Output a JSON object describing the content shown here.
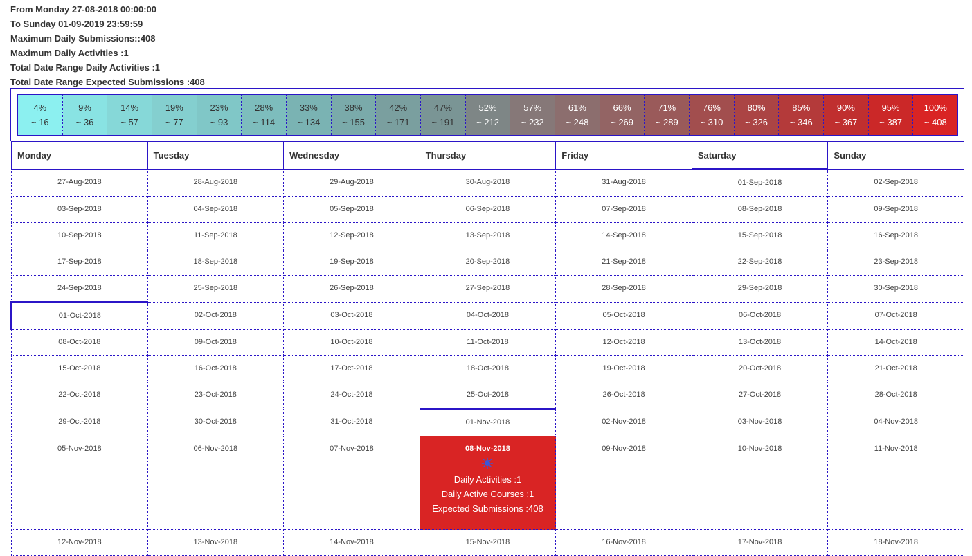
{
  "summary": {
    "from": "From Monday 27-08-2018 00:00:00",
    "to": "To Sunday 01-09-2019 23:59:59",
    "max_submissions": "Maximum Daily Submissions::408",
    "max_activities": "Maximum Daily Activities :1",
    "total_activities": "Total Date Range Daily Activities :1",
    "total_expected": "Total Date Range Expected Submissions :408"
  },
  "legend": [
    {
      "pct": "4%",
      "val": "~ 16",
      "color": "#8cf0f0",
      "text": "#333"
    },
    {
      "pct": "9%",
      "val": "~ 36",
      "color": "#89e3e3",
      "text": "#333"
    },
    {
      "pct": "14%",
      "val": "~ 57",
      "color": "#86d8d8",
      "text": "#333"
    },
    {
      "pct": "19%",
      "val": "~ 77",
      "color": "#84cfcf",
      "text": "#333"
    },
    {
      "pct": "23%",
      "val": "~ 93",
      "color": "#80c7c7",
      "text": "#333"
    },
    {
      "pct": "28%",
      "val": "~ 114",
      "color": "#7dbdbd",
      "text": "#333"
    },
    {
      "pct": "33%",
      "val": "~ 134",
      "color": "#7ab3b3",
      "text": "#333"
    },
    {
      "pct": "38%",
      "val": "~ 155",
      "color": "#7aaaaa",
      "text": "#333"
    },
    {
      "pct": "42%",
      "val": "~ 171",
      "color": "#7a9f9f",
      "text": "#333"
    },
    {
      "pct": "47%",
      "val": "~ 191",
      "color": "#7a9595",
      "text": "#333"
    },
    {
      "pct": "52%",
      "val": "~ 212",
      "color": "#7e8686",
      "text": "#fff"
    },
    {
      "pct": "57%",
      "val": "~ 232",
      "color": "#867878",
      "text": "#fff"
    },
    {
      "pct": "61%",
      "val": "~ 248",
      "color": "#8c6e6e",
      "text": "#fff"
    },
    {
      "pct": "66%",
      "val": "~ 269",
      "color": "#936464",
      "text": "#fff"
    },
    {
      "pct": "71%",
      "val": "~ 289",
      "color": "#9a5a5a",
      "text": "#fff"
    },
    {
      "pct": "76%",
      "val": "~ 310",
      "color": "#a24e4e",
      "text": "#fff"
    },
    {
      "pct": "80%",
      "val": "~ 326",
      "color": "#ab4444",
      "text": "#fff"
    },
    {
      "pct": "85%",
      "val": "~ 346",
      "color": "#b43a3a",
      "text": "#fff"
    },
    {
      "pct": "90%",
      "val": "~ 367",
      "color": "#c02f2f",
      "text": "#fff"
    },
    {
      "pct": "95%",
      "val": "~ 387",
      "color": "#cb2828",
      "text": "#fff"
    },
    {
      "pct": "100%",
      "val": "~ 408",
      "color": "#d92424",
      "text": "#fff"
    }
  ],
  "days": [
    "Monday",
    "Tuesday",
    "Wednesday",
    "Thursday",
    "Friday",
    "Saturday",
    "Sunday"
  ],
  "weeks": [
    [
      "27-Aug-2018",
      "28-Aug-2018",
      "29-Aug-2018",
      "30-Aug-2018",
      "31-Aug-2018",
      "01-Sep-2018",
      "02-Sep-2018"
    ],
    [
      "03-Sep-2018",
      "04-Sep-2018",
      "05-Sep-2018",
      "06-Sep-2018",
      "07-Sep-2018",
      "08-Sep-2018",
      "09-Sep-2018"
    ],
    [
      "10-Sep-2018",
      "11-Sep-2018",
      "12-Sep-2018",
      "13-Sep-2018",
      "14-Sep-2018",
      "15-Sep-2018",
      "16-Sep-2018"
    ],
    [
      "17-Sep-2018",
      "18-Sep-2018",
      "19-Sep-2018",
      "20-Sep-2018",
      "21-Sep-2018",
      "22-Sep-2018",
      "23-Sep-2018"
    ],
    [
      "24-Sep-2018",
      "25-Sep-2018",
      "26-Sep-2018",
      "27-Sep-2018",
      "28-Sep-2018",
      "29-Sep-2018",
      "30-Sep-2018"
    ],
    [
      "01-Oct-2018",
      "02-Oct-2018",
      "03-Oct-2018",
      "04-Oct-2018",
      "05-Oct-2018",
      "06-Oct-2018",
      "07-Oct-2018"
    ],
    [
      "08-Oct-2018",
      "09-Oct-2018",
      "10-Oct-2018",
      "11-Oct-2018",
      "12-Oct-2018",
      "13-Oct-2018",
      "14-Oct-2018"
    ],
    [
      "15-Oct-2018",
      "16-Oct-2018",
      "17-Oct-2018",
      "18-Oct-2018",
      "19-Oct-2018",
      "20-Oct-2018",
      "21-Oct-2018"
    ],
    [
      "22-Oct-2018",
      "23-Oct-2018",
      "24-Oct-2018",
      "25-Oct-2018",
      "26-Oct-2018",
      "27-Oct-2018",
      "28-Oct-2018"
    ],
    [
      "29-Oct-2018",
      "30-Oct-2018",
      "31-Oct-2018",
      "01-Nov-2018",
      "02-Nov-2018",
      "03-Nov-2018",
      "04-Nov-2018"
    ],
    [
      "05-Nov-2018",
      "06-Nov-2018",
      "07-Nov-2018",
      "08-Nov-2018",
      "09-Nov-2018",
      "10-Nov-2018",
      "11-Nov-2018"
    ],
    [
      "12-Nov-2018",
      "13-Nov-2018",
      "14-Nov-2018",
      "15-Nov-2018",
      "16-Nov-2018",
      "17-Nov-2018",
      "18-Nov-2018"
    ]
  ],
  "hot_day": {
    "date": "08-Nov-2018",
    "daily_activities": "Daily Activities :1",
    "daily_active_courses": "Daily Active Courses :1",
    "expected_submissions": "Expected Submissions :408",
    "color": "#d92424",
    "icon": "bug-icon"
  }
}
